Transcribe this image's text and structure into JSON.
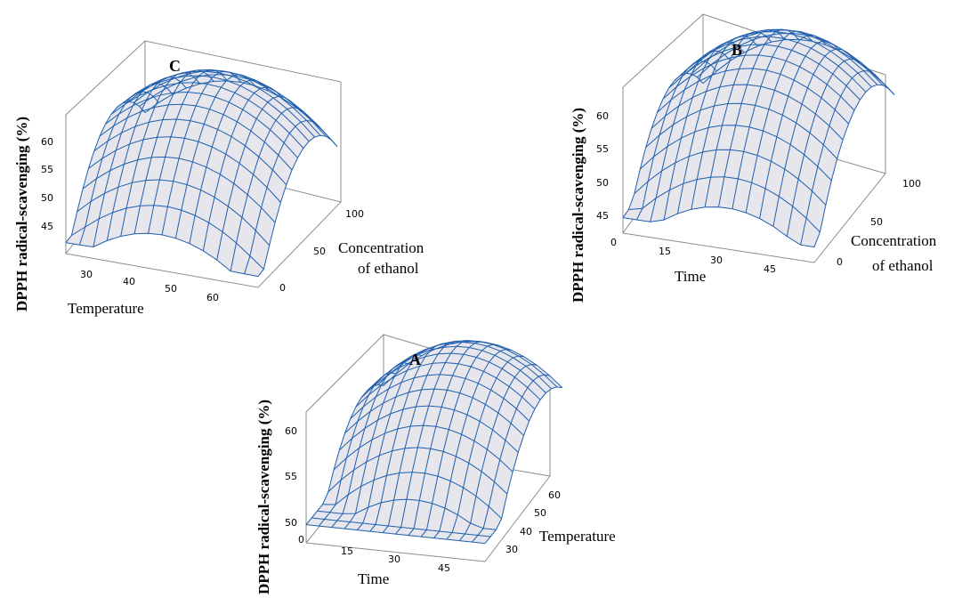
{
  "colors": {
    "mesh": "#1f5fae",
    "surface": "#e6e6ec",
    "box": "#8c8c8c"
  },
  "chart_data": [
    {
      "id": "C",
      "type": "surface",
      "panel_label": "C",
      "zlabel": "DPPH radical-scavenging (%)",
      "xlabel": "Temperature",
      "ylabel_lines": [
        "Concentration",
        "of ethanol"
      ],
      "x_ticks": [
        "30",
        "40",
        "50",
        "60"
      ],
      "y_ticks": [
        "0",
        "50",
        "100"
      ],
      "z_ticks": [
        "45",
        "50",
        "55",
        "60"
      ],
      "xlim": [
        25,
        65
      ],
      "ylim": [
        0,
        100
      ],
      "zlim": [
        43,
        62
      ],
      "surface_model": {
        "min": 44.5,
        "max": 60.5,
        "ridge_x": 45,
        "ridge_y": 60
      },
      "grid": {
        "nx": 14,
        "ny": 14
      }
    },
    {
      "id": "B",
      "type": "surface",
      "panel_label": "B",
      "zlabel": "DPPH radical-scavenging (%)",
      "xlabel": "Time",
      "ylabel_lines": [
        "Concentration",
        "of ethanol"
      ],
      "x_ticks": [
        "0",
        "15",
        "30",
        "45"
      ],
      "y_ticks": [
        "0",
        "50",
        "100"
      ],
      "z_ticks": [
        "45",
        "50",
        "55",
        "60"
      ],
      "xlim": [
        0,
        55
      ],
      "ylim": [
        0,
        100
      ],
      "zlim": [
        43,
        62
      ],
      "surface_model": {
        "min": 45.0,
        "max": 61.0,
        "ridge_x": 30,
        "ridge_y": 60
      },
      "grid": {
        "nx": 14,
        "ny": 14
      }
    },
    {
      "id": "A",
      "type": "surface",
      "panel_label": "A",
      "zlabel": "DPPH radical-scavenging (%)",
      "xlabel": "Time",
      "ylabel_lines": [
        "Temperature"
      ],
      "x_ticks": [
        "0",
        "15",
        "30",
        "45"
      ],
      "y_ticks": [
        "30",
        "40",
        "50",
        "60"
      ],
      "z_ticks": [
        "50",
        "55",
        "60"
      ],
      "xlim": [
        0,
        55
      ],
      "ylim": [
        25,
        65
      ],
      "zlim": [
        48,
        63
      ],
      "surface_model": {
        "min": 50.0,
        "max": 62.5,
        "ridge_x": 30,
        "ridge_y": 55
      },
      "grid": {
        "nx": 14,
        "ny": 14
      }
    }
  ]
}
